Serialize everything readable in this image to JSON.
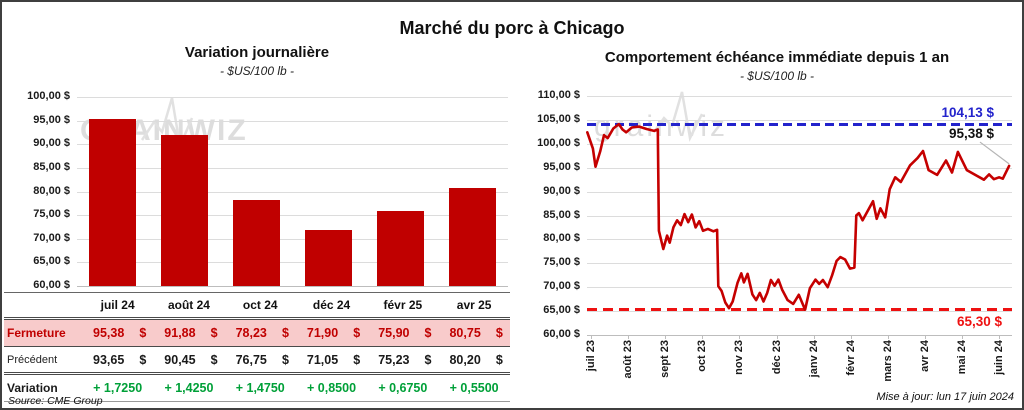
{
  "header": {
    "title": "Marché du porc à Chicago"
  },
  "watermark": {
    "left": "GRAINWIZ",
    "right": "grainwiz"
  },
  "colors": {
    "bar": "#c00000",
    "line": "#c50000",
    "high_line": "#2323cc",
    "low_line": "#ee1111",
    "green_text": "#00a038",
    "red_text": "#c00000",
    "pink_row": "#f8cbcb",
    "grid": "#dcdcdc",
    "axis": "#bdbdbd",
    "leader": "#b5b5b5"
  },
  "chart_data": [
    {
      "type": "bar",
      "title": "Variation  journalière",
      "subtitle": "- $US/100 lb -",
      "categories": [
        "juil 24",
        "août 24",
        "oct 24",
        "déc 24",
        "févr 25",
        "avr 25"
      ],
      "values": [
        95.38,
        91.88,
        78.23,
        71.9,
        75.9,
        80.75
      ],
      "ylim": [
        60,
        100
      ],
      "ytick_values": [
        100,
        95,
        90,
        85,
        80,
        75,
        70,
        65,
        60
      ],
      "ytick_labels": [
        "100,00 $",
        "95,00 $",
        "90,00 $",
        "85,00 $",
        "80,00 $",
        "75,00 $",
        "70,00 $",
        "65,00 $",
        "60,00 $"
      ],
      "grid": true,
      "legend": "none"
    },
    {
      "type": "line",
      "title": "Comportement  échéance immédiate depuis 1 an",
      "subtitle": "- $US/100 lb -",
      "x_labels": [
        "juil 23",
        "août 23",
        "sept 23",
        "oct 23",
        "nov 23",
        "déc 23",
        "janv 24",
        "févr 24",
        "mars 24",
        "avr 24",
        "mai 24",
        "juin 24"
      ],
      "ylim": [
        60,
        110
      ],
      "ytick_values": [
        110,
        105,
        100,
        95,
        90,
        85,
        80,
        75,
        70,
        65,
        60
      ],
      "ytick_labels": [
        "110,00 $",
        "105,00 $",
        "100,00 $",
        "95,00 $",
        "90,00 $",
        "85,00 $",
        "80,00 $",
        "75,00 $",
        "70,00 $",
        "65,00 $",
        "60,00 $"
      ],
      "high_line": {
        "value": 104.13,
        "label": "104,13 $"
      },
      "low_line": {
        "value": 65.3,
        "label": "65,30 $"
      },
      "last_point": {
        "value": 95.38,
        "label": "95,38 $"
      },
      "grid": true,
      "legend": "none",
      "points": [
        [
          -0.1,
          102.4
        ],
        [
          0.05,
          99.0
        ],
        [
          0.12,
          95.2
        ],
        [
          0.25,
          98.5
        ],
        [
          0.35,
          101.8
        ],
        [
          0.45,
          101.2
        ],
        [
          0.6,
          103.2
        ],
        [
          0.75,
          104.13
        ],
        [
          0.85,
          103.0
        ],
        [
          0.95,
          102.4
        ],
        [
          1.1,
          103.4
        ],
        [
          1.3,
          103.6
        ],
        [
          1.5,
          103.1
        ],
        [
          1.7,
          102.7
        ],
        [
          1.8,
          103.0
        ],
        [
          1.83,
          81.8
        ],
        [
          1.95,
          78.0
        ],
        [
          2.05,
          80.8
        ],
        [
          2.12,
          79.3
        ],
        [
          2.22,
          82.5
        ],
        [
          2.32,
          84.0
        ],
        [
          2.42,
          83.0
        ],
        [
          2.52,
          85.3
        ],
        [
          2.62,
          83.6
        ],
        [
          2.72,
          85.2
        ],
        [
          2.82,
          82.5
        ],
        [
          2.92,
          83.8
        ],
        [
          3.02,
          81.8
        ],
        [
          3.15,
          82.2
        ],
        [
          3.3,
          81.7
        ],
        [
          3.4,
          82.0
        ],
        [
          3.43,
          70.2
        ],
        [
          3.52,
          69.2
        ],
        [
          3.62,
          66.8
        ],
        [
          3.72,
          65.6
        ],
        [
          3.82,
          67.0
        ],
        [
          3.95,
          70.9
        ],
        [
          4.05,
          72.9
        ],
        [
          4.12,
          71.0
        ],
        [
          4.22,
          72.8
        ],
        [
          4.35,
          68.5
        ],
        [
          4.45,
          67.3
        ],
        [
          4.55,
          68.8
        ],
        [
          4.65,
          67.0
        ],
        [
          4.75,
          68.8
        ],
        [
          4.85,
          71.5
        ],
        [
          4.95,
          70.3
        ],
        [
          5.05,
          71.6
        ],
        [
          5.15,
          69.5
        ],
        [
          5.3,
          67.3
        ],
        [
          5.45,
          66.5
        ],
        [
          5.6,
          68.4
        ],
        [
          5.77,
          65.3
        ],
        [
          5.9,
          69.8
        ],
        [
          6.05,
          71.6
        ],
        [
          6.15,
          70.7
        ],
        [
          6.25,
          71.5
        ],
        [
          6.38,
          70.0
        ],
        [
          6.5,
          72.5
        ],
        [
          6.62,
          75.5
        ],
        [
          6.72,
          76.3
        ],
        [
          6.85,
          75.8
        ],
        [
          6.98,
          73.9
        ],
        [
          7.1,
          74.1
        ],
        [
          7.15,
          85.0
        ],
        [
          7.22,
          85.5
        ],
        [
          7.32,
          84.0
        ],
        [
          7.46,
          86.0
        ],
        [
          7.6,
          88.0
        ],
        [
          7.7,
          84.3
        ],
        [
          7.8,
          86.5
        ],
        [
          7.93,
          84.6
        ],
        [
          8.05,
          90.5
        ],
        [
          8.2,
          93.0
        ],
        [
          8.35,
          92.0
        ],
        [
          8.6,
          95.5
        ],
        [
          8.8,
          97.0
        ],
        [
          8.95,
          98.5
        ],
        [
          9.1,
          94.5
        ],
        [
          9.33,
          93.5
        ],
        [
          9.45,
          95.0
        ],
        [
          9.57,
          96.5
        ],
        [
          9.73,
          94.0
        ],
        [
          9.89,
          98.3
        ],
        [
          10.13,
          94.5
        ],
        [
          10.4,
          93.3
        ],
        [
          10.59,
          92.5
        ],
        [
          10.73,
          93.6
        ],
        [
          10.86,
          92.6
        ],
        [
          11.0,
          93.0
        ],
        [
          11.1,
          92.7
        ],
        [
          11.27,
          95.38
        ]
      ]
    }
  ],
  "table": {
    "columns": [
      "juil 24",
      "août 24",
      "oct 24",
      "déc 24",
      "févr 25",
      "avr 25"
    ],
    "currency": "$",
    "rows": [
      {
        "label": "Fermeture",
        "values": [
          "95,38",
          "91,88",
          "78,23",
          "71,90",
          "75,90",
          "80,75"
        ],
        "currency": true,
        "style": "fermeture"
      },
      {
        "label": "Précédent",
        "values": [
          "93,65",
          "90,45",
          "76,75",
          "71,05",
          "75,23",
          "80,20"
        ],
        "currency": true,
        "style": "precedent"
      },
      {
        "label": "Variation",
        "values": [
          "+ 1,7250",
          "+ 1,4250",
          "+ 1,4750",
          "+ 0,8500",
          "+ 0,6750",
          "+ 0,5500"
        ],
        "currency": false,
        "style": "variation"
      }
    ]
  },
  "footer": {
    "source": "Source: CME Group",
    "updated": "Mise à jour: lun 17 juin 2024"
  }
}
